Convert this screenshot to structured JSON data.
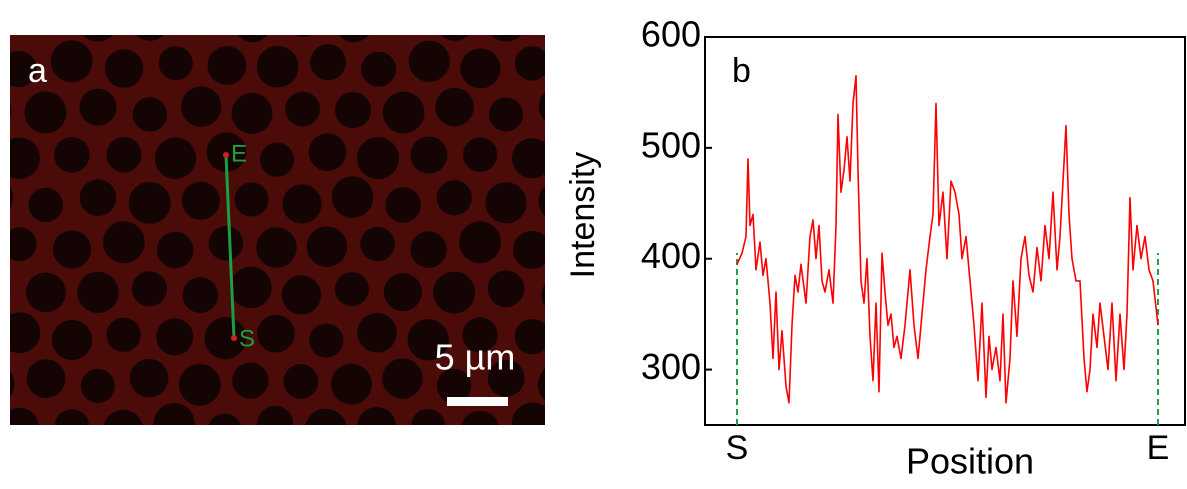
{
  "micrograph": {
    "panel_label": "a",
    "scale_bar": "5 µm",
    "start_label": "S",
    "end_label": "E"
  },
  "chart_data": {
    "type": "line",
    "panel_label": "b",
    "x_label": "Position",
    "y_label": "Intensity",
    "x": [
      0,
      5,
      9,
      11,
      13,
      16,
      19,
      23,
      26,
      29,
      33,
      36,
      39,
      42,
      45,
      49,
      52,
      55,
      58,
      61,
      64,
      69,
      73,
      76,
      79,
      82,
      85,
      88,
      92,
      96,
      99,
      101,
      104,
      107,
      110,
      113,
      116,
      119,
      121,
      124,
      127,
      130,
      133,
      136,
      139,
      142,
      145,
      148,
      151,
      154,
      157,
      160,
      164,
      168,
      173,
      177,
      181,
      185,
      189,
      193,
      196,
      199,
      202,
      206,
      210,
      214,
      218,
      222,
      225,
      229,
      233,
      237,
      241,
      245,
      249,
      252,
      255,
      259,
      263,
      266,
      269,
      273,
      276,
      280,
      284,
      288,
      292,
      296,
      300,
      304,
      308,
      312,
      316,
      320,
      323,
      326,
      329,
      332,
      335,
      339,
      343,
      347,
      350,
      353,
      356,
      360,
      363,
      367,
      371,
      375,
      379,
      383,
      387,
      390,
      393,
      396,
      400,
      404,
      408,
      412,
      416,
      421
    ],
    "series": [
      {
        "name": "Intensity",
        "color": "#ff0000",
        "values": [
          395,
          405,
          420,
          490,
          430,
          440,
          390,
          415,
          385,
          400,
          360,
          310,
          370,
          300,
          335,
          285,
          270,
          340,
          385,
          370,
          395,
          360,
          420,
          435,
          400,
          430,
          380,
          370,
          390,
          360,
          430,
          530,
          460,
          480,
          510,
          470,
          540,
          565,
          480,
          380,
          360,
          400,
          330,
          290,
          360,
          280,
          405,
          370,
          340,
          350,
          320,
          330,
          310,
          340,
          390,
          340,
          310,
          350,
          390,
          420,
          440,
          540,
          430,
          460,
          400,
          470,
          460,
          440,
          400,
          420,
          380,
          340,
          290,
          360,
          275,
          330,
          300,
          320,
          290,
          350,
          270,
          310,
          380,
          330,
          400,
          420,
          385,
          370,
          410,
          380,
          430,
          400,
          460,
          390,
          420,
          470,
          520,
          440,
          400,
          380,
          380,
          310,
          280,
          300,
          350,
          320,
          360,
          330,
          300,
          360,
          290,
          350,
          300,
          350,
          455,
          390,
          430,
          400,
          420,
          390,
          380,
          340
        ]
      }
    ],
    "xlim": [
      -32,
      448
    ],
    "xticks": [
      {
        "value": 0,
        "label": "S"
      },
      {
        "value": 421,
        "label": "E"
      }
    ],
    "ylim": [
      250,
      600
    ],
    "yticks": [
      300,
      400,
      500,
      600
    ],
    "marker_line_color": "#22a050"
  }
}
